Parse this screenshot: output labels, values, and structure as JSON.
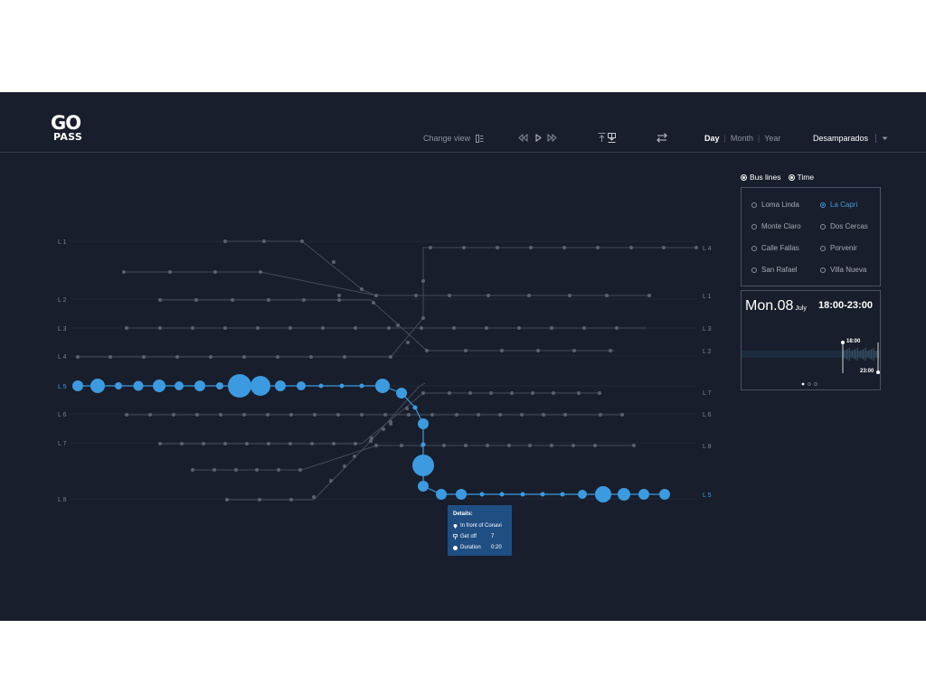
{
  "brand": {
    "logo_top": "GO",
    "logo_bottom": "PASS"
  },
  "header": {
    "change_view_label": "Change view",
    "periods": [
      {
        "label": "Day",
        "active": true
      },
      {
        "label": "Month",
        "active": false
      },
      {
        "label": "Year",
        "active": false
      }
    ],
    "region": "Desamparados"
  },
  "mode": {
    "bus_lines_label": "Bus lines",
    "time_label": "Time"
  },
  "stops": [
    {
      "label": "Loma Linda",
      "selected": false
    },
    {
      "label": "La Capri",
      "selected": true
    },
    {
      "label": "Monte Claro",
      "selected": false
    },
    {
      "label": "Dos Cercas",
      "selected": false
    },
    {
      "label": "Calle Fallas",
      "selected": false
    },
    {
      "label": "Porvenir",
      "selected": false
    },
    {
      "label": "San Rafael",
      "selected": false
    },
    {
      "label": "Villa Nueva",
      "selected": false
    }
  ],
  "time": {
    "day": "Mon.08",
    "month": "July",
    "range": "18:00-23:00",
    "start": "18:00",
    "end": "23:00"
  },
  "map": {
    "left_labels": [
      "L 1",
      "L 2",
      "L 3",
      "L 4",
      "L 5",
      "L 6",
      "L 7",
      "L 8"
    ],
    "right_labels": [
      "L 4",
      "L 1",
      "L 3",
      "L 2",
      "L 7",
      "L 6",
      "L 8",
      "L 5"
    ],
    "highlighted_line": "L 5"
  },
  "tooltip": {
    "title": "Details:",
    "location": "In front of Conavi",
    "get_off_label": "Get off",
    "get_off_value": "7",
    "duration_label": "Duration",
    "duration_value": "0:20"
  },
  "colors": {
    "background": "#181e2b",
    "accent": "#3c9be0",
    "tooltip": "#1f4e83",
    "line": "#444b5a",
    "dot": "#5a6170"
  }
}
